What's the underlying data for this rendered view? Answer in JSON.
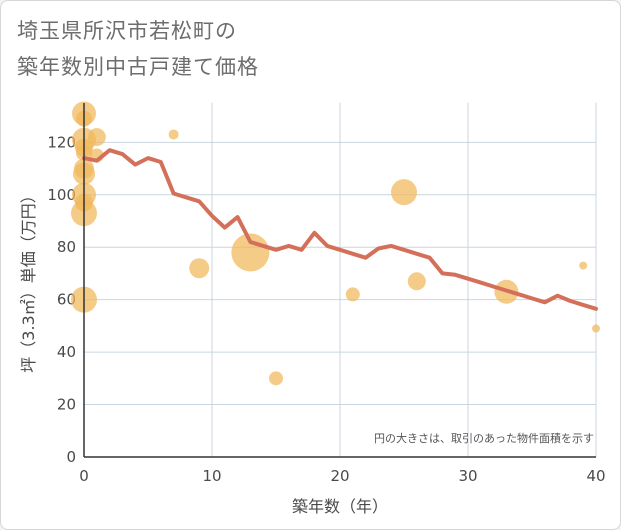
{
  "title_lines": [
    "埼玉県所沢市若松町の",
    "築年数別中古戸建て価格"
  ],
  "chart_data": {
    "type": "scatter",
    "title": "埼玉県所沢市若松町の築年数別中古戸建て価格",
    "xlabel": "築年数（年）",
    "ylabel": "坪（3.3㎡）単価（万円）",
    "xlim": [
      0,
      40
    ],
    "ylim": [
      0,
      135
    ],
    "xticks": [
      0,
      10,
      20,
      30,
      40
    ],
    "yticks": [
      0,
      20,
      40,
      60,
      80,
      100,
      120
    ],
    "grid": true,
    "note": "円の大きさは、取引のあった物件面積を示す",
    "colors": {
      "bubble": "#f1b75a",
      "line": "#d4705a",
      "grid": "#c9d6df",
      "axis": "#333333"
    },
    "bubbles": [
      {
        "x": 0,
        "y": 131,
        "size": 12
      },
      {
        "x": 0,
        "y": 129,
        "size": 8
      },
      {
        "x": 0,
        "y": 121,
        "size": 12
      },
      {
        "x": 0,
        "y": 118,
        "size": 9
      },
      {
        "x": 0,
        "y": 116,
        "size": 8
      },
      {
        "x": 0,
        "y": 110,
        "size": 10
      },
      {
        "x": 0,
        "y": 108,
        "size": 11
      },
      {
        "x": 0,
        "y": 100,
        "size": 12
      },
      {
        "x": 0,
        "y": 97,
        "size": 9
      },
      {
        "x": 0,
        "y": 93,
        "size": 13
      },
      {
        "x": 0,
        "y": 60,
        "size": 13
      },
      {
        "x": 1,
        "y": 122,
        "size": 9
      },
      {
        "x": 1,
        "y": 115,
        "size": 7
      },
      {
        "x": 7,
        "y": 123,
        "size": 5
      },
      {
        "x": 9,
        "y": 72,
        "size": 10
      },
      {
        "x": 13,
        "y": 78,
        "size": 19
      },
      {
        "x": 15,
        "y": 30,
        "size": 7
      },
      {
        "x": 21,
        "y": 62,
        "size": 7
      },
      {
        "x": 25,
        "y": 101,
        "size": 13
      },
      {
        "x": 26,
        "y": 67,
        "size": 9
      },
      {
        "x": 33,
        "y": 63,
        "size": 12
      },
      {
        "x": 39,
        "y": 73,
        "size": 4
      },
      {
        "x": 40,
        "y": 49,
        "size": 4
      }
    ],
    "trend_line": {
      "x": [
        0,
        1,
        2,
        3,
        4,
        5,
        6,
        7,
        8,
        9,
        10,
        11,
        12,
        13,
        14,
        15,
        16,
        17,
        18,
        19,
        20,
        21,
        22,
        23,
        24,
        25,
        26,
        27,
        28,
        29,
        30,
        31,
        32,
        33,
        34,
        35,
        36,
        37,
        38,
        39,
        40
      ],
      "y": [
        114,
        113,
        117,
        115.5,
        111.5,
        114,
        112.5,
        100.5,
        99,
        97.5,
        92,
        87.5,
        91.5,
        82,
        80.5,
        79,
        80.5,
        79,
        85.5,
        80.5,
        79,
        77.5,
        76,
        79.5,
        80.5,
        79,
        77.5,
        76,
        70,
        69.5,
        68,
        66.5,
        65,
        63.5,
        62,
        60.5,
        59,
        61.5,
        59.5,
        58,
        56.5
      ]
    }
  }
}
